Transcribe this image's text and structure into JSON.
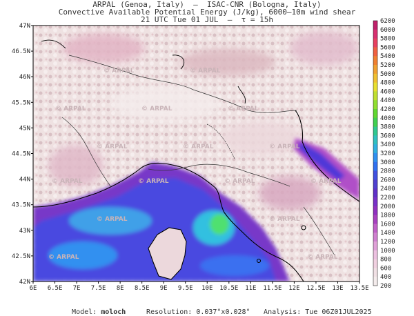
{
  "header": {
    "line1": "ARPAL (Genoa, Italy)  –  ISAC-CNR (Bologna, Italy)",
    "line2": "Convective Available Potential Energy (J/kg), 6000–10m wind shear",
    "line3": "21 UTC Tue 01 JUL  –  τ = 15h"
  },
  "map": {
    "lat_labels": [
      "47N",
      "46.5N",
      "46N",
      "45.5N",
      "45N",
      "44.5N",
      "44N",
      "43.5N",
      "43N",
      "42.5N",
      "42N"
    ],
    "lon_labels": [
      "6E",
      "6.5E",
      "7E",
      "7.5E",
      "8E",
      "8.5E",
      "9E",
      "9.5E",
      "10E",
      "10.5E",
      "11E",
      "11.5E",
      "12E",
      "12.5E",
      "13E",
      "13.5E"
    ],
    "watermark": "ARPAL",
    "colors": {
      "land_low": "#e8dcdc",
      "sea_high": "#4040e0",
      "cyan": "#30d0e0",
      "green": "#40e060",
      "magenta": "#c040c0",
      "coast": "#000000"
    }
  },
  "colorbar": {
    "labels": [
      "6200",
      "6000",
      "5800",
      "5600",
      "5400",
      "5200",
      "5000",
      "4800",
      "4600",
      "4400",
      "4200",
      "4000",
      "3800",
      "3600",
      "3400",
      "3200",
      "3000",
      "2800",
      "2600",
      "2400",
      "2200",
      "2000",
      "1800",
      "1600",
      "1400",
      "1200",
      "1000",
      "800",
      "600",
      "400",
      "200"
    ],
    "colors": [
      "#c0206a",
      "#d83070",
      "#e84060",
      "#f06040",
      "#f08030",
      "#f0a030",
      "#f0c030",
      "#e8e030",
      "#c0e030",
      "#90e030",
      "#60d830",
      "#40d050",
      "#30c890",
      "#30c0c0",
      "#30b0e0",
      "#3090f0",
      "#3070f0",
      "#4050e0",
      "#5040d0",
      "#6030c8",
      "#7830c8",
      "#9030c0",
      "#a840c0",
      "#c060c8",
      "#d080d0",
      "#e0a0d8",
      "#ecc0e0",
      "#f0d0e0",
      "#f0e0e4",
      "#f4ecec"
    ]
  },
  "footer": {
    "model_label": "Model:",
    "model_value": "moloch",
    "resolution_label": "Resolution:",
    "resolution_value": "0.037°x0.028°",
    "analysis_label": "Analysis:",
    "analysis_value": "Tue 06Z01JUL2025"
  }
}
